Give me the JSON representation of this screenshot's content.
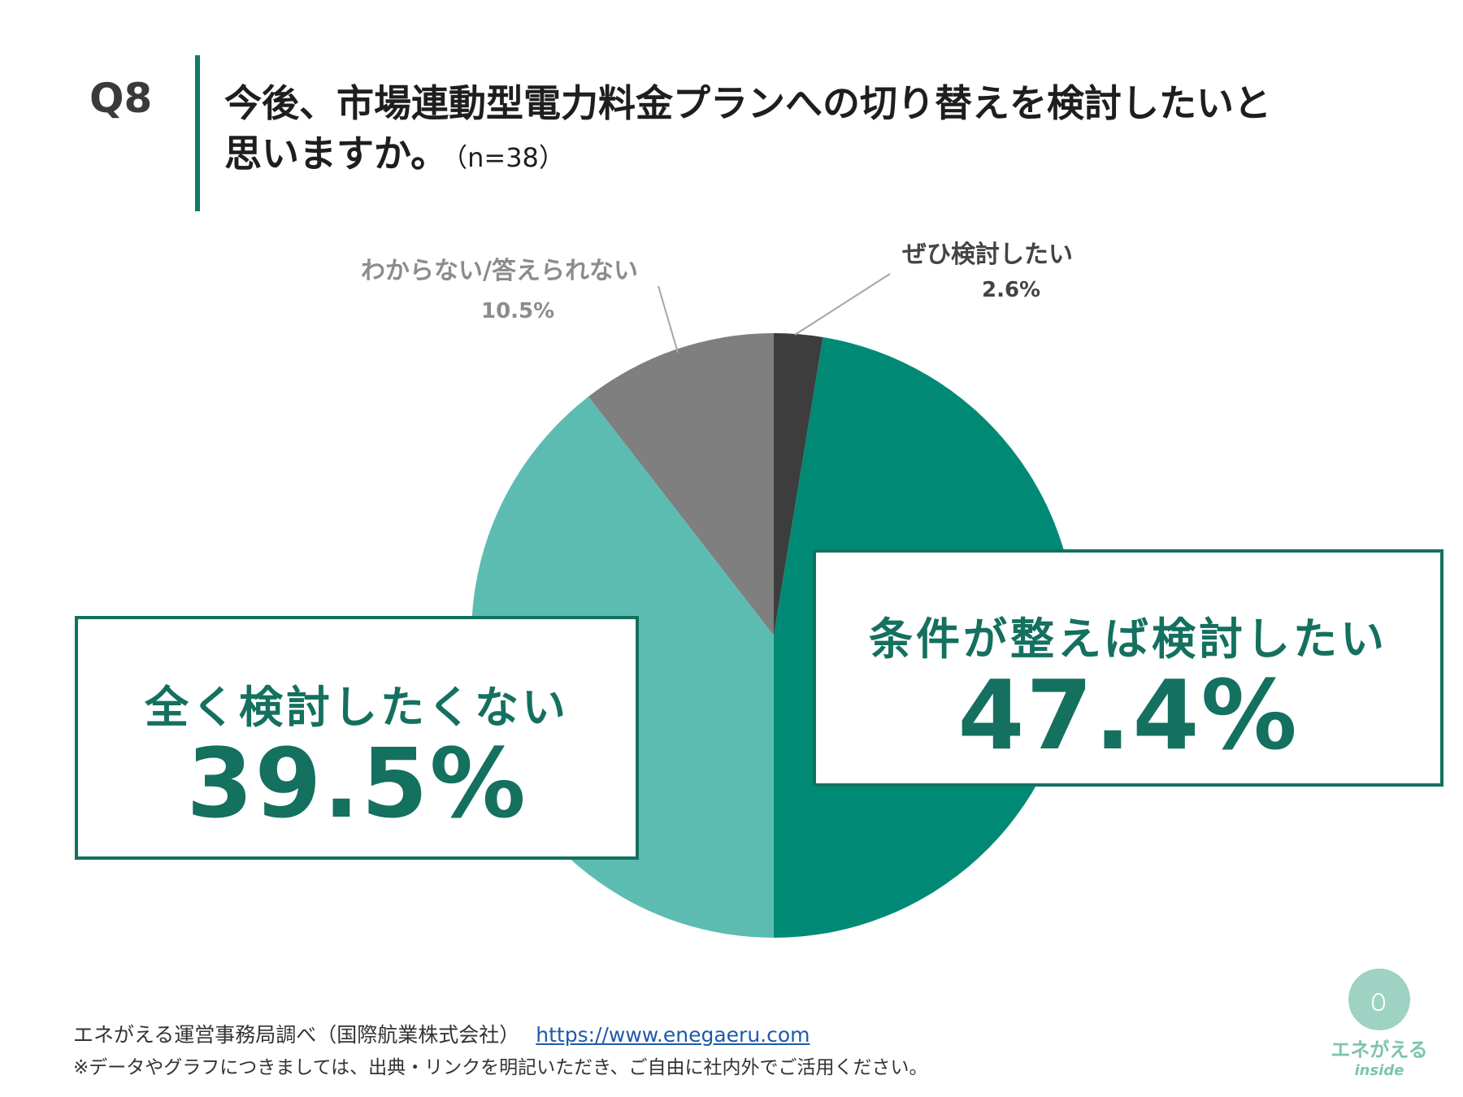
{
  "question": {
    "number": "Q8",
    "text_line1": "今後、市場連動型電力料金プランへの切り替えを検討したいと",
    "text_line2": "思いますか。",
    "sample": "（n=38）"
  },
  "chart_data": {
    "type": "pie",
    "start": "12 o'clock, clockwise",
    "slices": [
      {
        "label": "ぜひ検討したい",
        "value": 2.6,
        "display": "2.6%",
        "color": "#3d3d3d"
      },
      {
        "label": "条件が整えば検討したい",
        "value": 47.4,
        "display": "47.4%",
        "color": "#008a75"
      },
      {
        "label": "全く検討したくない",
        "value": 39.5,
        "display": "39.5%",
        "color": "#5dbcb2"
      },
      {
        "label": "わからない/答えられない",
        "value": 10.5,
        "display": "10.5%",
        "color": "#7f7f7f"
      }
    ]
  },
  "footer": {
    "source": "エネがえる運営事務局調べ（国際航業株式会社）",
    "url": "https://www.enegaeru.com",
    "note": "※データやグラフにつきましては、出典・リンクを明記いただき、ご自由に社内外でご活用ください。"
  },
  "logo": {
    "line1": "エネがえる",
    "line2": "inside"
  }
}
